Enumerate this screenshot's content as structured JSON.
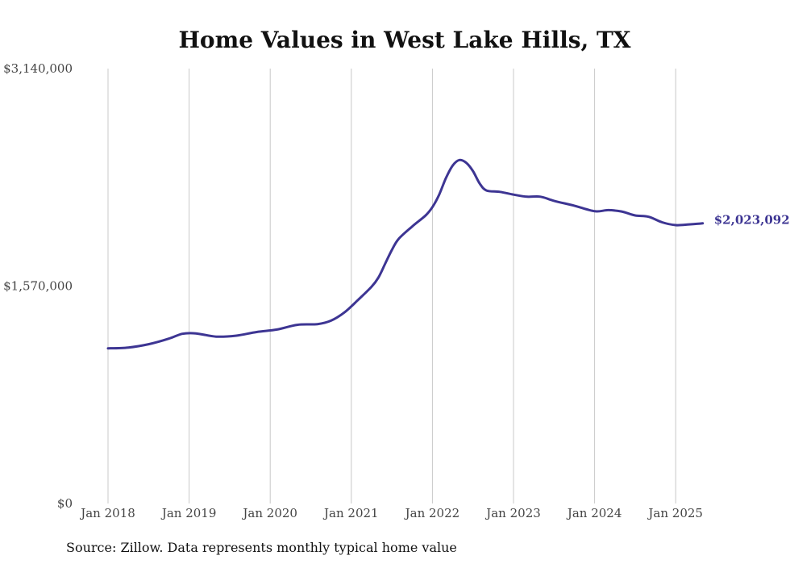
{
  "chart_data": {
    "type": "line",
    "title": "Home Values in West Lake Hills, TX",
    "source": "Source: Zillow. Data represents monthly typical home value",
    "ylim": [
      0,
      3140000
    ],
    "y_ticks": [
      "$0",
      "$1,570,000",
      "$3,140,000"
    ],
    "y_tick_values": [
      0,
      1570000,
      3140000
    ],
    "x_ticks": [
      "Jan 2018",
      "Jan 2019",
      "Jan 2020",
      "Jan 2021",
      "Jan 2022",
      "Jan 2023",
      "Jan 2024",
      "Jan 2025"
    ],
    "x_tick_values": [
      "2018-01",
      "2019-01",
      "2020-01",
      "2021-01",
      "2022-01",
      "2023-01",
      "2024-01",
      "2025-01"
    ],
    "grid": "vertical",
    "line_color": "#3d3593",
    "end_label": "$2,023,092",
    "series": [
      {
        "points": [
          [
            "2018-01",
            1120000
          ],
          [
            "2018-04",
            1126000
          ],
          [
            "2018-07",
            1150000
          ],
          [
            "2018-10",
            1190000
          ],
          [
            "2018-12",
            1225000
          ],
          [
            "2019-02",
            1228000
          ],
          [
            "2019-05",
            1205000
          ],
          [
            "2019-08",
            1212000
          ],
          [
            "2019-11",
            1238000
          ],
          [
            "2020-02",
            1256000
          ],
          [
            "2020-05",
            1290000
          ],
          [
            "2020-08",
            1295000
          ],
          [
            "2020-10",
            1320000
          ],
          [
            "2020-12",
            1380000
          ],
          [
            "2021-02",
            1470000
          ],
          [
            "2021-04",
            1565000
          ],
          [
            "2021-05",
            1630000
          ],
          [
            "2021-06",
            1730000
          ],
          [
            "2021-07",
            1830000
          ],
          [
            "2021-08",
            1910000
          ],
          [
            "2021-10",
            2000000
          ],
          [
            "2021-12",
            2080000
          ],
          [
            "2022-01",
            2140000
          ],
          [
            "2022-02",
            2230000
          ],
          [
            "2022-03",
            2350000
          ],
          [
            "2022-04",
            2440000
          ],
          [
            "2022-05",
            2480000
          ],
          [
            "2022-06",
            2460000
          ],
          [
            "2022-07",
            2400000
          ],
          [
            "2022-08",
            2310000
          ],
          [
            "2022-09",
            2260000
          ],
          [
            "2022-11",
            2250000
          ],
          [
            "2023-01",
            2230000
          ],
          [
            "2023-03",
            2215000
          ],
          [
            "2023-05",
            2215000
          ],
          [
            "2023-07",
            2185000
          ],
          [
            "2023-10",
            2150000
          ],
          [
            "2024-01",
            2110000
          ],
          [
            "2024-03",
            2118000
          ],
          [
            "2024-05",
            2108000
          ],
          [
            "2024-07",
            2080000
          ],
          [
            "2024-09",
            2070000
          ],
          [
            "2024-11",
            2030000
          ],
          [
            "2025-01",
            2010000
          ],
          [
            "2025-03",
            2015000
          ],
          [
            "2025-05",
            2023092
          ]
        ]
      }
    ]
  }
}
